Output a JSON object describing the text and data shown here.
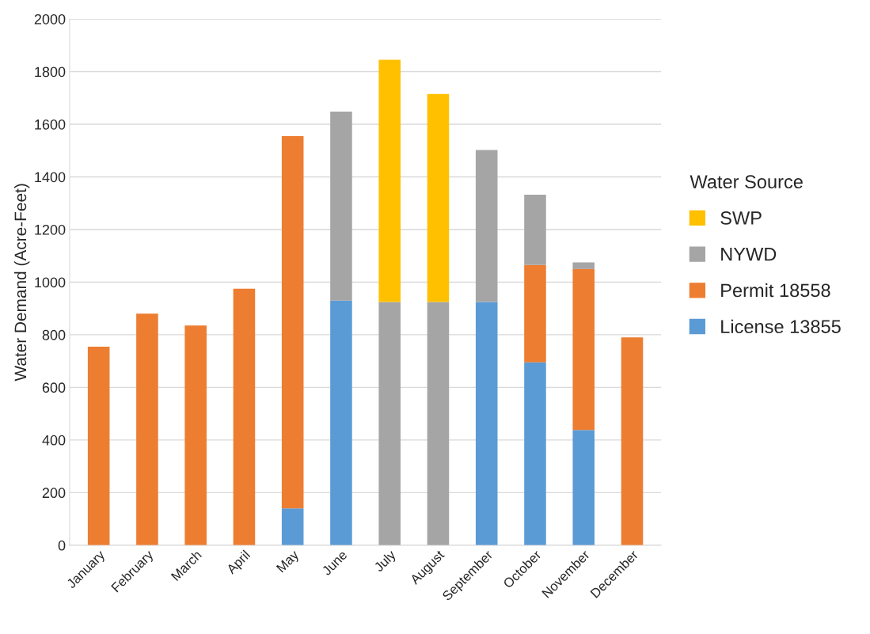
{
  "chart_data": {
    "type": "bar",
    "stacked": true,
    "ylabel": "Water Demand (Acre-Feet)",
    "legend_title": "Water Source",
    "categories": [
      "January",
      "February",
      "March",
      "April",
      "May",
      "June",
      "July",
      "August",
      "September",
      "October",
      "November",
      "December"
    ],
    "series": [
      {
        "name": "License 13855",
        "color": "#5b9bd5",
        "values": [
          0,
          0,
          0,
          0,
          140,
          930,
          0,
          0,
          925,
          695,
          438,
          0
        ]
      },
      {
        "name": "Permit 18558",
        "color": "#ed7d31",
        "values": [
          755,
          880,
          835,
          975,
          1415,
          0,
          0,
          0,
          0,
          370,
          612,
          790
        ]
      },
      {
        "name": "NYWD",
        "color": "#a5a5a5",
        "values": [
          0,
          0,
          0,
          0,
          0,
          718,
          925,
          925,
          577,
          267,
          25,
          0
        ]
      },
      {
        "name": "SWP",
        "color": "#ffc000",
        "values": [
          0,
          0,
          0,
          0,
          0,
          0,
          920,
          790,
          0,
          0,
          0,
          0
        ]
      }
    ],
    "ylim": [
      0,
      2000
    ],
    "yticks": [
      0,
      200,
      400,
      600,
      800,
      1000,
      1200,
      1400,
      1600,
      1800,
      2000
    ],
    "grid": "y",
    "legend": "right"
  }
}
